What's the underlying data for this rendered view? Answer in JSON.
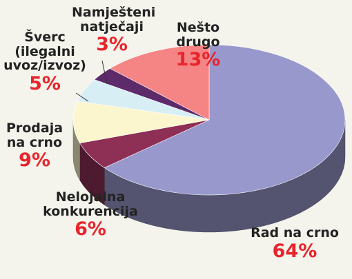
{
  "chart_data": {
    "type": "pie",
    "style": "3d",
    "title": "",
    "slices": [
      {
        "name": "Rad na crno",
        "value": 64,
        "label": "64%",
        "color": "#9898cc"
      },
      {
        "name": "Nelojalna konkurencija",
        "value": 6,
        "label": "6%",
        "color": "#8e2f55"
      },
      {
        "name": "Prodaja na crno",
        "value": 9,
        "label": "9%",
        "color": "#fbf6cd"
      },
      {
        "name": "Šverc (ilegalni uvoz/izvoz)",
        "value": 5,
        "label": "5%",
        "color": "#d8eef5"
      },
      {
        "name": "Namješteni natječaji",
        "value": 3,
        "label": "3%",
        "color": "#5d2b6a"
      },
      {
        "name": "Nešto drugo",
        "value": 13,
        "label": "13%",
        "color": "#f58484"
      }
    ]
  },
  "labels": {
    "rad": {
      "line1": "Rad na crno",
      "pct": "64%"
    },
    "nel": {
      "line1": "Nelojalna",
      "line2": "konkurencija",
      "pct": "6%"
    },
    "pro": {
      "line1": "Prodaja",
      "line2": "na crno",
      "pct": "9%"
    },
    "sve": {
      "line1": "Šverc",
      "line2": "(ilegalni",
      "line3": "uvoz/izvoz)",
      "pct": "5%"
    },
    "nam": {
      "line1": "Namješteni",
      "line2": "natječaji",
      "pct": "3%"
    },
    "nes": {
      "line1": "Nešto drugo",
      "pct": "13%"
    }
  }
}
